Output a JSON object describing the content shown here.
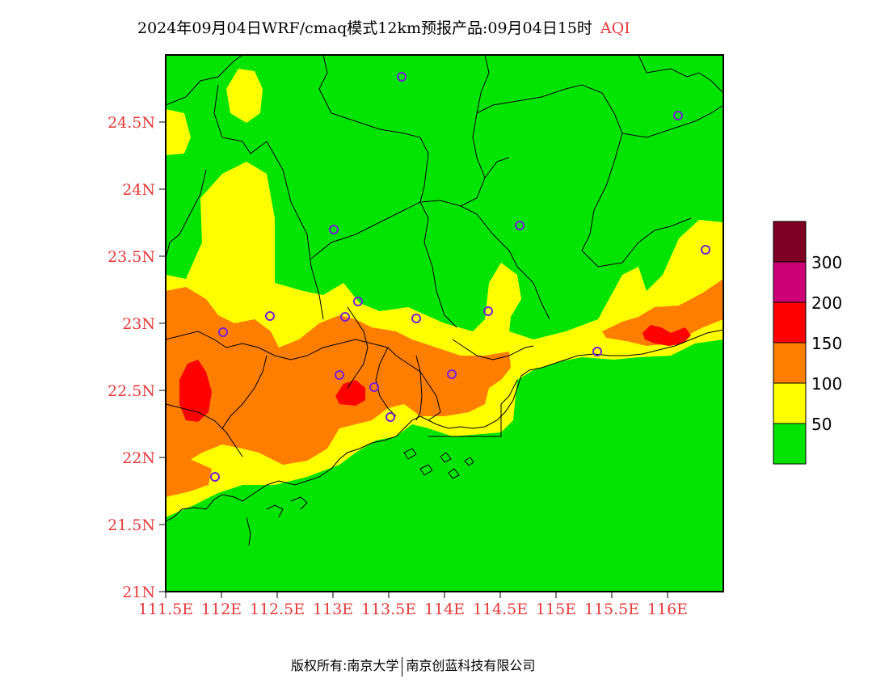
{
  "title": {
    "main": "2024年09月04日WRF/cmaq模式12km预报产品:09月04日15时",
    "variable": "AQI"
  },
  "axes": {
    "x_ticks": [
      "111.5E",
      "112E",
      "112.5E",
      "113E",
      "113.5E",
      "114E",
      "114.5E",
      "115E",
      "115.5E",
      "116E"
    ],
    "y_ticks": [
      "21N",
      "21.5N",
      "22N",
      "22.5N",
      "23N",
      "23.5N",
      "24N",
      "24.5N"
    ],
    "tick_color": "#e53a3a"
  },
  "legend": {
    "labels": [
      "50",
      "100",
      "150",
      "200",
      "300"
    ],
    "colors": [
      "#00e400",
      "#ffff00",
      "#ff7e00",
      "#ff0000",
      "#cc0077",
      "#7e0023"
    ]
  },
  "footer": {
    "left": "版权所有:南京大学",
    "right": "南京创蓝科技有限公司"
  },
  "colors": {
    "good": "#00e400",
    "moderate": "#ffff00",
    "usg": "#ff7e00",
    "unhealthy": "#ff0000",
    "very_unhealthy": "#cc0077",
    "hazardous": "#7e0023",
    "station_marker": "#7a1fd6"
  }
}
